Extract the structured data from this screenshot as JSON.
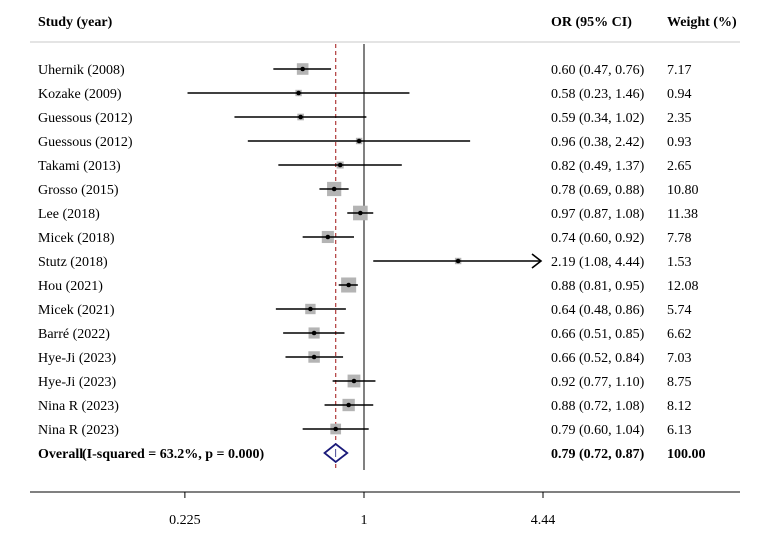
{
  "chart_data": {
    "type": "forest",
    "headers": {
      "study": "Study (year)",
      "or_ci": "OR (95% CI)",
      "weight": "Weight (%)"
    },
    "x_scale": "log",
    "x_ticks": [
      {
        "value": 0.225,
        "label": "0.225"
      },
      {
        "value": 1,
        "label": "1"
      },
      {
        "value": 4.44,
        "label": "4.44"
      }
    ],
    "reference_line": 1,
    "pooled_line": 0.79,
    "rows": [
      {
        "study": "Uhernik (2008)",
        "or": 0.6,
        "lo": 0.47,
        "hi": 0.76,
        "ci_text": "0.60 (0.47, 0.76)",
        "weight": 7.17,
        "weight_text": "7.17"
      },
      {
        "study": "Kozake (2009)",
        "or": 0.58,
        "lo": 0.23,
        "hi": 1.46,
        "ci_text": "0.58 (0.23, 1.46)",
        "weight": 0.94,
        "weight_text": "0.94"
      },
      {
        "study": "Guessous (2012)",
        "or": 0.59,
        "lo": 0.34,
        "hi": 1.02,
        "ci_text": "0.59 (0.34, 1.02)",
        "weight": 2.35,
        "weight_text": "2.35"
      },
      {
        "study": "Guessous (2012)",
        "or": 0.96,
        "lo": 0.38,
        "hi": 2.42,
        "ci_text": "0.96 (0.38, 2.42)",
        "weight": 0.93,
        "weight_text": "0.93"
      },
      {
        "study": "Takami (2013)",
        "or": 0.82,
        "lo": 0.49,
        "hi": 1.37,
        "ci_text": "0.82 (0.49, 1.37)",
        "weight": 2.65,
        "weight_text": "2.65"
      },
      {
        "study": "Grosso (2015)",
        "or": 0.78,
        "lo": 0.69,
        "hi": 0.88,
        "ci_text": "0.78 (0.69, 0.88)",
        "weight": 10.8,
        "weight_text": "10.80"
      },
      {
        "study": "Lee (2018)",
        "or": 0.97,
        "lo": 0.87,
        "hi": 1.08,
        "ci_text": "0.97 (0.87, 1.08)",
        "weight": 11.38,
        "weight_text": "11.38"
      },
      {
        "study": "Micek (2018)",
        "or": 0.74,
        "lo": 0.6,
        "hi": 0.92,
        "ci_text": "0.74 (0.60, 0.92)",
        "weight": 7.78,
        "weight_text": "7.78"
      },
      {
        "study": "Stutz (2018)",
        "or": 2.19,
        "lo": 1.08,
        "hi": 4.44,
        "ci_text": "2.19 (1.08, 4.44)",
        "weight": 1.53,
        "weight_text": "1.53",
        "arrow_right": true
      },
      {
        "study": "Hou (2021)",
        "or": 0.88,
        "lo": 0.81,
        "hi": 0.95,
        "ci_text": "0.88 (0.81, 0.95)",
        "weight": 12.08,
        "weight_text": "12.08"
      },
      {
        "study": "Micek (2021)",
        "or": 0.64,
        "lo": 0.48,
        "hi": 0.86,
        "ci_text": "0.64 (0.48, 0.86)",
        "weight": 5.74,
        "weight_text": "5.74"
      },
      {
        "study": "Barré (2022)",
        "or": 0.66,
        "lo": 0.51,
        "hi": 0.85,
        "ci_text": "0.66 (0.51, 0.85)",
        "weight": 6.62,
        "weight_text": "6.62"
      },
      {
        "study": "Hye-Ji (2023)",
        "or": 0.66,
        "lo": 0.52,
        "hi": 0.84,
        "ci_text": "0.66 (0.52, 0.84)",
        "weight": 7.03,
        "weight_text": "7.03"
      },
      {
        "study": "Hye-Ji (2023)",
        "or": 0.92,
        "lo": 0.77,
        "hi": 1.1,
        "ci_text": "0.92 (0.77, 1.10)",
        "weight": 8.75,
        "weight_text": "8.75"
      },
      {
        "study": "Nina R (2023)",
        "or": 0.88,
        "lo": 0.72,
        "hi": 1.08,
        "ci_text": "0.88 (0.72, 1.08)",
        "weight": 8.12,
        "weight_text": "8.12"
      },
      {
        "study": "Nina R (2023)",
        "or": 0.79,
        "lo": 0.6,
        "hi": 1.04,
        "ci_text": "0.79 (0.60, 1.04)",
        "weight": 6.13,
        "weight_text": "6.13"
      }
    ],
    "overall": {
      "label": "Overall",
      "stats": "(I-squared = 63.2%, p = 0.000)",
      "or": 0.79,
      "lo": 0.72,
      "hi": 0.87,
      "ci_text": "0.79 (0.72, 0.87)",
      "weight_text": "100.00"
    },
    "colors": {
      "weight_box": "#b4b4b4",
      "pooled_line": "#b03a3a",
      "diamond": "#1a1a7a",
      "ci_line": "#000000"
    }
  }
}
